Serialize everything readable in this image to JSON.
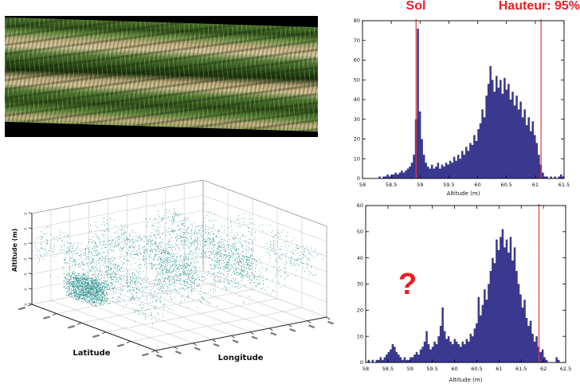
{
  "annotations": {
    "sol_label": "Sol",
    "hauteur_label": "Hauteur: 95%",
    "question_mark": "?",
    "accent_red": "#ec1c24"
  },
  "photo": {
    "description": "tilted close-up photo of grass rows on sandy soil inside black frame",
    "frame_color": "#000000",
    "grass_green": "#4f7c31",
    "grass_shadow": "#172f0a",
    "soil_tan": "#d6c296"
  },
  "chart_data": [
    {
      "id": "histogram_thresholds",
      "type": "bar",
      "title": "",
      "xlabel": "Altitude (m)",
      "ylabel": "",
      "xlim": [
        58,
        61.5
      ],
      "ylim": [
        0,
        80
      ],
      "x_ticks": [
        58,
        58.5,
        59,
        59.5,
        60,
        60.5,
        61,
        61.5
      ],
      "y_ticks": [
        0,
        10,
        20,
        30,
        40,
        50,
        60,
        70,
        80
      ],
      "x_start": 58,
      "bin_width": 0.035,
      "bar_color": "#3b3890",
      "grid": false,
      "ref_lines": [
        {
          "x": 58.93,
          "label": "Sol",
          "color": "#e53935"
        },
        {
          "x": 61.1,
          "label": "Hauteur: 95%",
          "color": "#e53935"
        }
      ],
      "values": [
        0,
        0,
        0,
        0,
        0,
        0,
        0,
        0,
        1,
        0,
        1,
        1,
        2,
        1,
        2,
        2,
        3,
        2,
        3,
        4,
        3,
        4,
        5,
        6,
        8,
        12,
        30,
        76,
        34,
        20,
        12,
        8,
        6,
        5,
        7,
        5,
        6,
        8,
        5,
        7,
        6,
        8,
        7,
        9,
        8,
        11,
        9,
        12,
        10,
        14,
        12,
        16,
        14,
        18,
        17,
        22,
        19,
        25,
        28,
        35,
        31,
        42,
        48,
        57,
        50,
        44,
        52,
        46,
        50,
        43,
        51,
        45,
        48,
        40,
        44,
        37,
        42,
        35,
        39,
        31,
        35,
        27,
        31,
        24,
        29,
        22,
        18,
        12,
        7,
        3,
        1,
        1,
        0,
        1,
        0,
        1,
        0,
        1,
        2,
        1
      ]
    },
    {
      "id": "histogram_question",
      "type": "bar",
      "title": "",
      "xlabel": "Altitude (m)",
      "ylabel": "",
      "xlim": [
        58,
        62.5
      ],
      "ylim": [
        0,
        60
      ],
      "x_ticks": [
        58,
        58.5,
        59,
        59.5,
        60,
        60.5,
        61,
        61.5,
        62,
        62.5
      ],
      "y_ticks": [
        0,
        10,
        20,
        30,
        40,
        50,
        60
      ],
      "x_start": 58,
      "bin_width": 0.045,
      "bar_color": "#3b3890",
      "grid": false,
      "ref_lines": [
        {
          "x": 61.9,
          "label": "",
          "color": "#e53935"
        }
      ],
      "annotation": {
        "text": "?",
        "x": 59.2,
        "y": 28
      },
      "values": [
        0,
        1,
        0,
        1,
        0,
        1,
        1,
        2,
        1,
        2,
        3,
        4,
        5,
        7,
        6,
        4,
        3,
        2,
        1,
        2,
        1,
        1,
        2,
        2,
        3,
        4,
        3,
        5,
        6,
        8,
        12,
        7,
        5,
        6,
        8,
        7,
        10,
        14,
        21,
        12,
        9,
        10,
        8,
        7,
        9,
        8,
        7,
        6,
        8,
        7,
        9,
        8,
        11,
        10,
        13,
        15,
        25,
        18,
        22,
        28,
        24,
        30,
        35,
        40,
        38,
        47,
        43,
        48,
        51,
        44,
        47,
        42,
        48,
        39,
        44,
        35,
        30,
        26,
        21,
        24,
        17,
        14,
        16,
        11,
        8,
        10,
        6,
        4,
        5,
        2,
        1,
        0,
        0,
        0,
        0,
        2,
        1,
        0,
        0,
        0
      ]
    },
    {
      "id": "point_cloud_3d",
      "type": "scatter",
      "title": "",
      "xlabel": "Latitude",
      "ylabel": "Longitude",
      "zlabel": "Altitude (m)",
      "point_color": "#0e8482",
      "grid": true,
      "z_ticks": [
        "58",
        "59",
        "60",
        "61",
        "62",
        "63",
        "64"
      ],
      "lat_tick_count": 6,
      "lon_tick_count": 10,
      "tick_label_style": "illegible-smudge",
      "cloud": {
        "canopy_points": 6500,
        "understory_streaks": 13,
        "understory_points": 850,
        "ground_patch_points": 1200,
        "seed": 7
      }
    }
  ]
}
